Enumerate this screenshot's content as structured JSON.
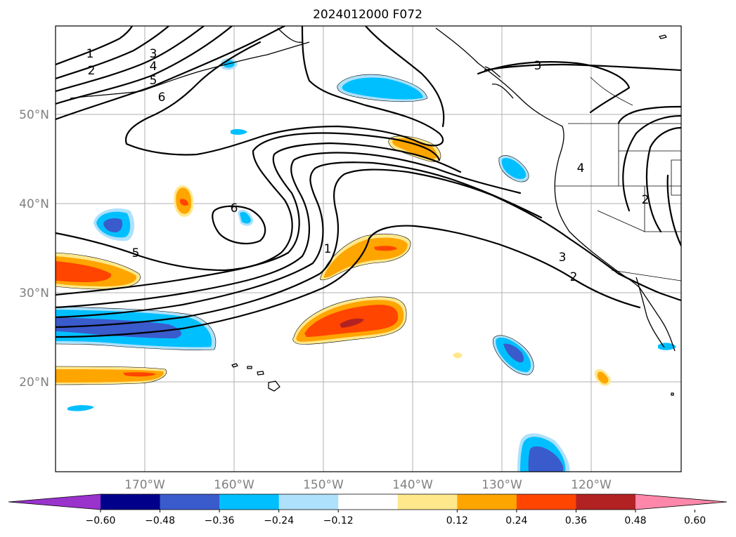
{
  "title": "2024012000 F072",
  "lat_labels": [
    "50°N",
    "40°N",
    "30°N",
    "20°N"
  ],
  "lon_labels": [
    "170°W",
    "160°W",
    "150°W",
    "140°W",
    "130°W",
    "120°W"
  ],
  "contour_labels": [
    "1",
    "2",
    "3",
    "4",
    "5",
    "6",
    "5",
    "6",
    "1",
    "3",
    "2",
    "3",
    "4",
    "2"
  ],
  "colorbar": {
    "colors": [
      "#9933cc",
      "#00008b",
      "#3a5bcc",
      "#00bfff",
      "#aee1fb",
      "#ffffff",
      "#ffe88c",
      "#ffa500",
      "#ff4500",
      "#b22222",
      "#ff88aa"
    ],
    "tick_labels": [
      "−0.60",
      "−0.48",
      "−0.36",
      "−0.24",
      "−0.12",
      "0.12",
      "0.24",
      "0.36",
      "0.48",
      "0.60"
    ]
  }
}
